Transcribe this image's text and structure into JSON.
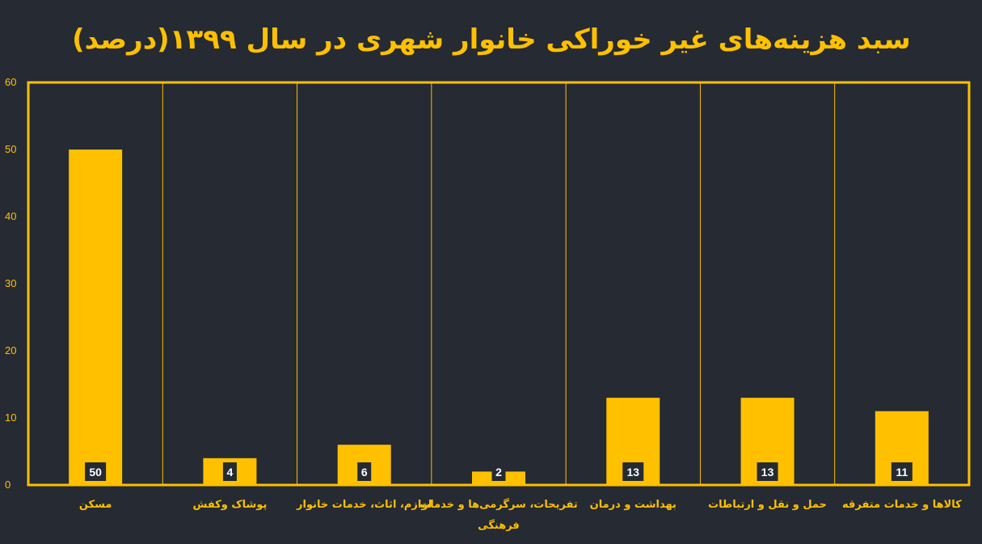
{
  "chart_data": {
    "type": "bar",
    "title": "سبد هزینه‌های غیر خوراکی خانوار شهری در سال ۱۳۹۹(درصد)",
    "categories": [
      "مسکن",
      "پوشاک وکفش",
      "لوازم، اثاث، خدمات خانوار",
      "تفریحات، سرگرمی‌ها و خدمات فرهنگی",
      "بهداشت و درمان",
      "حمل و نقل و ارتباطات",
      "کالاها و خدمات متفرقه"
    ],
    "values": [
      50,
      4,
      6,
      2,
      13,
      13,
      11
    ],
    "ylim": [
      0,
      60
    ],
    "yticks": [
      0,
      10,
      20,
      30,
      40,
      50,
      60
    ],
    "grid": false,
    "xlabel": "",
    "ylabel": ""
  },
  "colors": {
    "background": "#252a33",
    "accent": "#ffc000",
    "value_label_bg": "#252a33",
    "value_label_text": "#ffffff"
  }
}
